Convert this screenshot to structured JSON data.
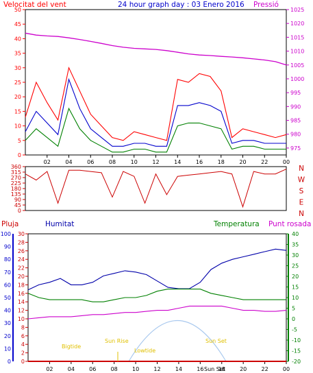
{
  "header": {
    "wind_label": "Velocitat del vent",
    "title": "24 hour graph day : 03 Enero 2016",
    "pressure_label": "Pressió"
  },
  "compass": [
    "N",
    "W",
    "S",
    "E",
    "N"
  ],
  "legend2": {
    "rain": "Pluja",
    "humidity": "Humitat",
    "temperature": "Temperatura",
    "dewpoint": "Punt rosada"
  },
  "annotations": {
    "high_tide": "Bigtide",
    "sun_rise": "Sun Rise",
    "low_tide": "Lowtide",
    "sun_set": "Sun Set",
    "sun_set_bottom": "Sun Set"
  },
  "colors": {
    "wind_gust": "#ff0000",
    "wind_avg": "#0000cc",
    "wind_min": "#008000",
    "pressure": "#cc00cc",
    "direction": "#cc0000",
    "humidity": "#0000aa",
    "temperature": "#008000",
    "dewpoint": "#cc00cc",
    "rain": "#cc0000",
    "sun_arc": "#a8c8ee",
    "annotation": "#e0c000",
    "axis": "#000000"
  },
  "chart_data": [
    {
      "type": "line",
      "title": "24 hour graph day : 03 Enero 2016",
      "x_ticks": [
        "02",
        "04",
        "06",
        "08",
        "10",
        "12",
        "14",
        "16",
        "18",
        "20",
        "22",
        "00"
      ],
      "y_left_ticks": [
        0,
        5,
        10,
        15,
        20,
        25,
        30,
        35,
        40,
        45,
        50
      ],
      "y_right_ticks": [
        975,
        980,
        985,
        990,
        995,
        1000,
        1005,
        1010,
        1015,
        1020,
        1025
      ],
      "ylim_left": [
        0,
        50
      ],
      "ylim_right": [
        972.5,
        1025
      ],
      "x_hours": [
        0,
        1,
        2,
        3,
        4,
        5,
        6,
        7,
        8,
        9,
        10,
        11,
        12,
        13,
        14,
        15,
        16,
        17,
        18,
        19,
        20,
        21,
        22,
        23,
        24
      ],
      "series": [
        {
          "name": "Velocitat del vent",
          "axis": "left",
          "values": [
            13,
            25,
            18,
            12,
            30,
            22,
            14,
            10,
            6,
            5,
            8,
            7,
            6,
            5,
            26,
            25,
            28,
            27,
            22,
            6,
            9,
            8,
            7,
            6,
            7
          ]
        },
        {
          "name": "",
          "axis": "left",
          "values": [
            8,
            15,
            11,
            7,
            26,
            16,
            9,
            6,
            3,
            3,
            4,
            4,
            3,
            3,
            17,
            17,
            18,
            17,
            15,
            4,
            5,
            5,
            4,
            4,
            4
          ]
        },
        {
          "name": "",
          "axis": "left",
          "values": [
            5,
            9,
            6,
            3,
            16,
            9,
            5,
            3,
            1,
            1,
            2,
            2,
            1,
            1,
            10,
            11,
            11,
            10,
            9,
            2,
            3,
            3,
            2,
            2,
            2
          ]
        },
        {
          "name": "Pressió",
          "axis": "right",
          "values": [
            1016.5,
            1015.8,
            1015.5,
            1015.3,
            1014.8,
            1014.2,
            1013.5,
            1012.8,
            1012.0,
            1011.4,
            1011.0,
            1010.8,
            1010.6,
            1010.2,
            1009.6,
            1009.0,
            1008.6,
            1008.4,
            1008.1,
            1007.9,
            1007.6,
            1007.2,
            1006.8,
            1006.2,
            1005.0
          ]
        }
      ]
    },
    {
      "type": "line",
      "compass_labels": [
        "N",
        "W",
        "S",
        "E",
        "N"
      ],
      "y_ticks": [
        0,
        45,
        90,
        135,
        180,
        225,
        270,
        315,
        360
      ],
      "ylim": [
        0,
        360
      ],
      "x_hours": [
        0,
        1,
        2,
        3,
        4,
        5,
        6,
        7,
        8,
        9,
        10,
        11,
        12,
        13,
        14,
        15,
        16,
        17,
        18,
        19,
        20,
        21,
        22,
        23,
        24
      ],
      "series": [
        {
          "name": "",
          "values": [
            300,
            250,
            320,
            60,
            330,
            330,
            320,
            310,
            110,
            320,
            280,
            60,
            300,
            130,
            280,
            290,
            300,
            310,
            320,
            300,
            30,
            320,
            300,
            300,
            340
          ]
        }
      ]
    },
    {
      "type": "line",
      "y_humidity_ticks": [
        0,
        10,
        20,
        30,
        40,
        50,
        60,
        70,
        80,
        90,
        100
      ],
      "y_rain_ticks": [
        0,
        2,
        4,
        6,
        8,
        10,
        12,
        14,
        16,
        18,
        20,
        22,
        24,
        26,
        28,
        30
      ],
      "y_temp_ticks": [
        -20,
        -15,
        -10,
        -5,
        0,
        5,
        10,
        15,
        20,
        25,
        30,
        35,
        40
      ],
      "ylim_humidity": [
        0,
        100
      ],
      "ylim_rain": [
        0,
        30
      ],
      "ylim_temp": [
        -20,
        40
      ],
      "x_hours": [
        0,
        1,
        2,
        3,
        4,
        5,
        6,
        7,
        8,
        9,
        10,
        11,
        12,
        13,
        14,
        15,
        16,
        17,
        18,
        19,
        20,
        21,
        22,
        23,
        24
      ],
      "series": [
        {
          "name": "Humitat",
          "values": [
            56,
            60,
            62,
            65,
            60,
            60,
            62,
            67,
            69,
            71,
            70,
            68,
            63,
            58,
            57,
            57,
            62,
            72,
            77,
            80,
            82,
            84,
            86,
            88,
            87
          ]
        },
        {
          "name": "Temperatura",
          "values": [
            12,
            10,
            9,
            9,
            9,
            9,
            8,
            8,
            9,
            10,
            10,
            11,
            13,
            14,
            14,
            14,
            14,
            12,
            11,
            10,
            9,
            9,
            9,
            9,
            9
          ]
        },
        {
          "name": "Punt rosada",
          "values": [
            0,
            0.5,
            1,
            1,
            1,
            1.5,
            2,
            2,
            2.5,
            3,
            3,
            3.5,
            4,
            4,
            5,
            6,
            6,
            6,
            6,
            5,
            4,
            4,
            3.5,
            3.5,
            4
          ]
        },
        {
          "name": "Pluja",
          "values": [
            0,
            0,
            0,
            0,
            0,
            0,
            0,
            0,
            0,
            0,
            0,
            0,
            0,
            0,
            0,
            0,
            0,
            0,
            0,
            0,
            0,
            0,
            0,
            0,
            0
          ]
        }
      ]
    }
  ]
}
